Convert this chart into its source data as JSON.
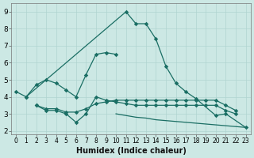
{
  "xlabel": "Humidex (Indice chaleur)",
  "bg_color": "#cce8e4",
  "grid_color": "#b0d4d0",
  "line_color": "#1a6e64",
  "xlim": [
    -0.5,
    23.5
  ],
  "ylim": [
    1.8,
    9.5
  ],
  "xticks": [
    0,
    1,
    2,
    3,
    4,
    5,
    6,
    7,
    8,
    9,
    10,
    11,
    12,
    13,
    14,
    15,
    16,
    17,
    18,
    19,
    20,
    21,
    22,
    23
  ],
  "yticks": [
    2,
    3,
    4,
    5,
    6,
    7,
    8,
    9
  ],
  "curve_peak": {
    "x": [
      0,
      1,
      11,
      12,
      13,
      14,
      15,
      16,
      17,
      18,
      20,
      21,
      23
    ],
    "y": [
      4.3,
      4.0,
      9.0,
      8.3,
      8.3,
      7.4,
      5.8,
      4.8,
      4.3,
      3.9,
      2.9,
      3.0,
      2.2
    ]
  },
  "curve_rise": {
    "x": [
      1,
      2,
      3,
      4,
      5,
      6,
      7,
      8,
      9,
      10
    ],
    "y": [
      4.0,
      4.7,
      5.0,
      4.8,
      4.4,
      4.0,
      5.3,
      6.5,
      6.6,
      6.5
    ]
  },
  "curve_flat_high": {
    "x": [
      2,
      3,
      4,
      5,
      6,
      7,
      8,
      9,
      10,
      11,
      12,
      13,
      14,
      15,
      16,
      17,
      18,
      19,
      20,
      21,
      22
    ],
    "y": [
      3.5,
      3.3,
      3.3,
      3.1,
      3.1,
      3.3,
      3.6,
      3.7,
      3.8,
      3.8,
      3.8,
      3.8,
      3.8,
      3.8,
      3.8,
      3.8,
      3.8,
      3.8,
      3.8,
      3.5,
      3.2
    ]
  },
  "curve_flat_low": {
    "x": [
      2,
      3,
      4,
      5,
      6,
      7,
      8,
      9,
      10,
      11,
      12,
      13,
      14,
      15,
      16,
      17,
      18,
      19,
      20,
      21,
      22
    ],
    "y": [
      3.5,
      3.2,
      3.2,
      3.0,
      2.5,
      3.0,
      4.0,
      3.8,
      3.7,
      3.6,
      3.5,
      3.5,
      3.5,
      3.5,
      3.5,
      3.5,
      3.5,
      3.5,
      3.5,
      3.2,
      3.0
    ]
  },
  "curve_decline": {
    "x": [
      10,
      11,
      12,
      13,
      14,
      15,
      16,
      17,
      18,
      19,
      20,
      21,
      22,
      23
    ],
    "y": [
      3.0,
      2.9,
      2.8,
      2.75,
      2.65,
      2.6,
      2.55,
      2.5,
      2.45,
      2.4,
      2.35,
      2.3,
      2.25,
      2.2
    ]
  }
}
